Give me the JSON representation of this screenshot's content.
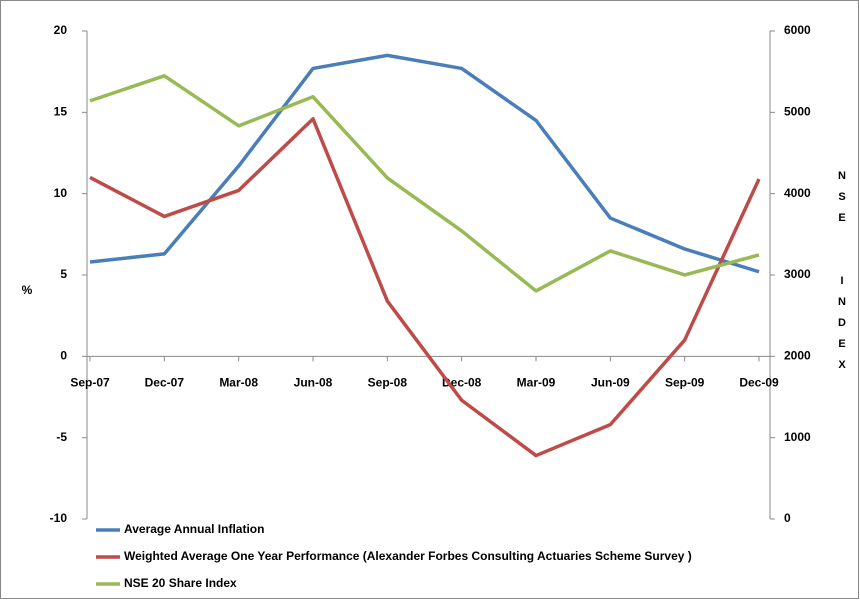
{
  "chart_data": {
    "type": "line",
    "categories": [
      "Sep-07",
      "Dec-07",
      "Mar-08",
      "Jun-08",
      "Sep-08",
      "Dec-08",
      "Mar-09",
      "Jun-09",
      "Sep-09",
      "Dec-09"
    ],
    "y_label": "%",
    "y2_label": "NSE  INDEX",
    "ylim": [
      -10,
      20
    ],
    "yticks": [
      -10,
      -5,
      0,
      5,
      10,
      15,
      20
    ],
    "y2lim": [
      0,
      6000
    ],
    "y2ticks": [
      0,
      1000,
      2000,
      3000,
      4000,
      5000,
      6000
    ],
    "grid": false,
    "series": [
      {
        "name": "Average Annual Inflation",
        "color": "#4a7ebb",
        "values": [
          5.8,
          6.3,
          11.7,
          17.7,
          18.5,
          17.7,
          14.5,
          8.5,
          6.6,
          5.2
        ]
      },
      {
        "name": "Weighted Average One Year Performance (Alexander Forbes Consulting Actuaries Scheme Survey )",
        "color": "#be4b48",
        "values": [
          11.0,
          8.6,
          10.2,
          14.6,
          3.4,
          -2.7,
          -6.1,
          -4.2,
          1.0,
          10.9
        ]
      },
      {
        "name": "NSE 20 Share Index",
        "color": "#98b954",
        "axis": "y2",
        "values": [
          5141,
          5449,
          4834,
          5191,
          4194,
          3542,
          2804,
          3296,
          3001,
          3247
        ]
      }
    ]
  }
}
